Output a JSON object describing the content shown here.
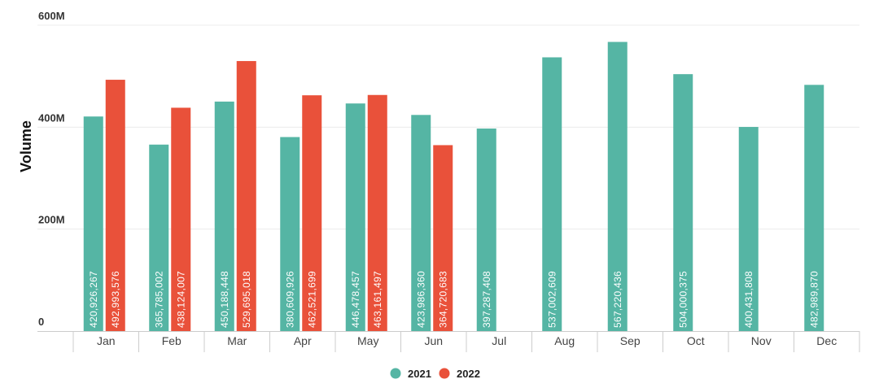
{
  "chart_data": {
    "type": "bar",
    "ylabel": "Volume",
    "ylim": [
      0,
      600000000
    ],
    "yticks": [
      {
        "value": 0,
        "label": "0"
      },
      {
        "value": 200000000,
        "label": "200M"
      },
      {
        "value": 400000000,
        "label": "400M"
      },
      {
        "value": 600000000,
        "label": "600M"
      }
    ],
    "grid": true,
    "legend_position": "bottom-center",
    "categories": [
      "Jan",
      "Feb",
      "Mar",
      "Apr",
      "May",
      "Jun",
      "Jul",
      "Aug",
      "Sep",
      "Oct",
      "Nov",
      "Dec"
    ],
    "series": [
      {
        "name": "2021",
        "color": "#55b5a4",
        "values": [
          420926267,
          365785002,
          450188448,
          380609926,
          446478457,
          423986360,
          397287408,
          537002609,
          567220436,
          504000375,
          400431808,
          482989870
        ],
        "labels": [
          "420,926,267",
          "365,785,002",
          "450,188,448",
          "380,609,926",
          "446,478,457",
          "423,986,360",
          "397,287,408",
          "537,002,609",
          "567,220,436",
          "504,000,375",
          "400,431,808",
          "482,989,870"
        ]
      },
      {
        "name": "2022",
        "color": "#e9513a",
        "values": [
          492993576,
          438124007,
          529695018,
          462521699,
          463161497,
          364720683,
          null,
          null,
          null,
          null,
          null,
          null
        ],
        "labels": [
          "492,993,576",
          "438,124,007",
          "529,695,018",
          "462,521,699",
          "463,161,497",
          "364,720,683",
          null,
          null,
          null,
          null,
          null,
          null
        ]
      }
    ]
  }
}
